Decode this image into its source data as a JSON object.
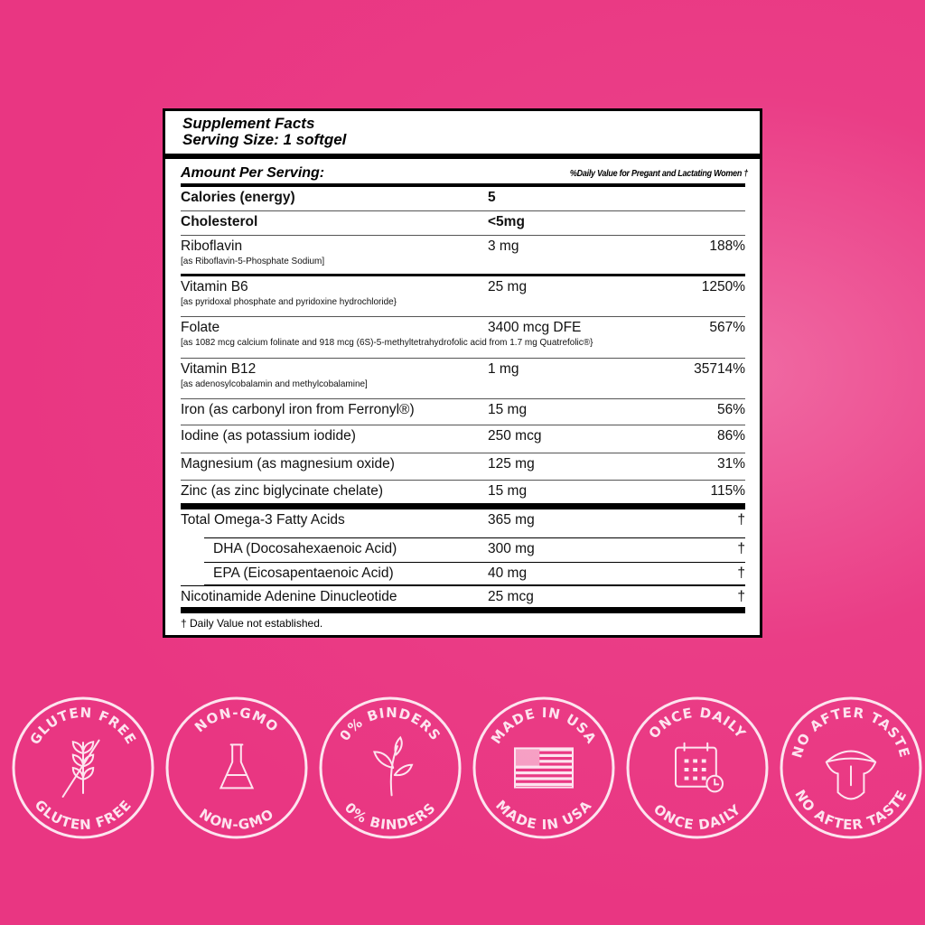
{
  "title": "Supplement Facts",
  "serving": "Serving Size: 1 softgel",
  "amount_per_serving": "Amount Per Serving:",
  "dv_header": "%Daily Value for Pregant and Lactating Women †",
  "rows": [
    {
      "name": "Calories (energy)",
      "amount": "5",
      "dv": "",
      "bold": true
    },
    {
      "name": "Cholesterol",
      "amount": "<5mg",
      "dv": "",
      "bold": true
    },
    {
      "name": "Riboflavin",
      "sub": "[as Riboflavin-5-Phosphate Sodium]",
      "amount": "3 mg",
      "dv": "188%"
    },
    {
      "name": "Vitamin B6",
      "sub": "[as pyridoxal phosphate and pyridoxine hydrochloride}",
      "amount": "25 mg",
      "dv": "1250%"
    },
    {
      "name": "Folate",
      "sub": "[as 1082 mcg calcium folinate and 918 mcg (6S)-5-methyltetrahydrofolic acid from 1.7 mg Quatrefolic®}",
      "amount": "3400 mcg DFE",
      "dv": "567%"
    },
    {
      "name": "Vitamin B12",
      "sub": "[as adenosylcobalamin and methylcobalamine]",
      "amount": "1 mg",
      "dv": "35714%"
    },
    {
      "name": "Iron (as carbonyl iron from Ferronyl®)",
      "amount": "15 mg",
      "dv": "56%"
    },
    {
      "name": "Iodine (as potassium iodide)",
      "amount": "250 mcg",
      "dv": "86%"
    },
    {
      "name": "Magnesium (as magnesium oxide)",
      "amount": "125 mg",
      "dv": "31%"
    },
    {
      "name": "Zinc (as zinc biglycinate chelate)",
      "amount": "15 mg",
      "dv": "115%"
    },
    {
      "name": "Total Omega-3 Fatty Acids",
      "amount": "365 mg",
      "dv": "†"
    },
    {
      "name": "DHA (Docosahexaenoic Acid)",
      "amount": "300 mg",
      "dv": "†",
      "indent": true
    },
    {
      "name": "EPA (Eicosapentaenoic Acid)",
      "amount": "40 mg",
      "dv": "†",
      "indent": true
    },
    {
      "name": "Nicotinamide Adenine Dinucleotide",
      "amount": "25 mcg",
      "dv": "†"
    }
  ],
  "footnote": "† Daily Value not established.",
  "colors": {
    "background": "#e93a84",
    "badge_line": "#fde4ef"
  },
  "badges": [
    {
      "label": "GLUTEN FREE",
      "icon": "wheat-crossed-icon"
    },
    {
      "label": "NON-GMO",
      "icon": "flask-icon"
    },
    {
      "label": "0% BINDERS",
      "icon": "leaf-sprout-icon"
    },
    {
      "label": "MADE IN USA",
      "icon": "us-flag-icon"
    },
    {
      "label": "ONCE DAILY",
      "icon": "calendar-clock-icon"
    },
    {
      "label": "NO AFTER TASTE",
      "icon": "tongue-icon"
    }
  ]
}
